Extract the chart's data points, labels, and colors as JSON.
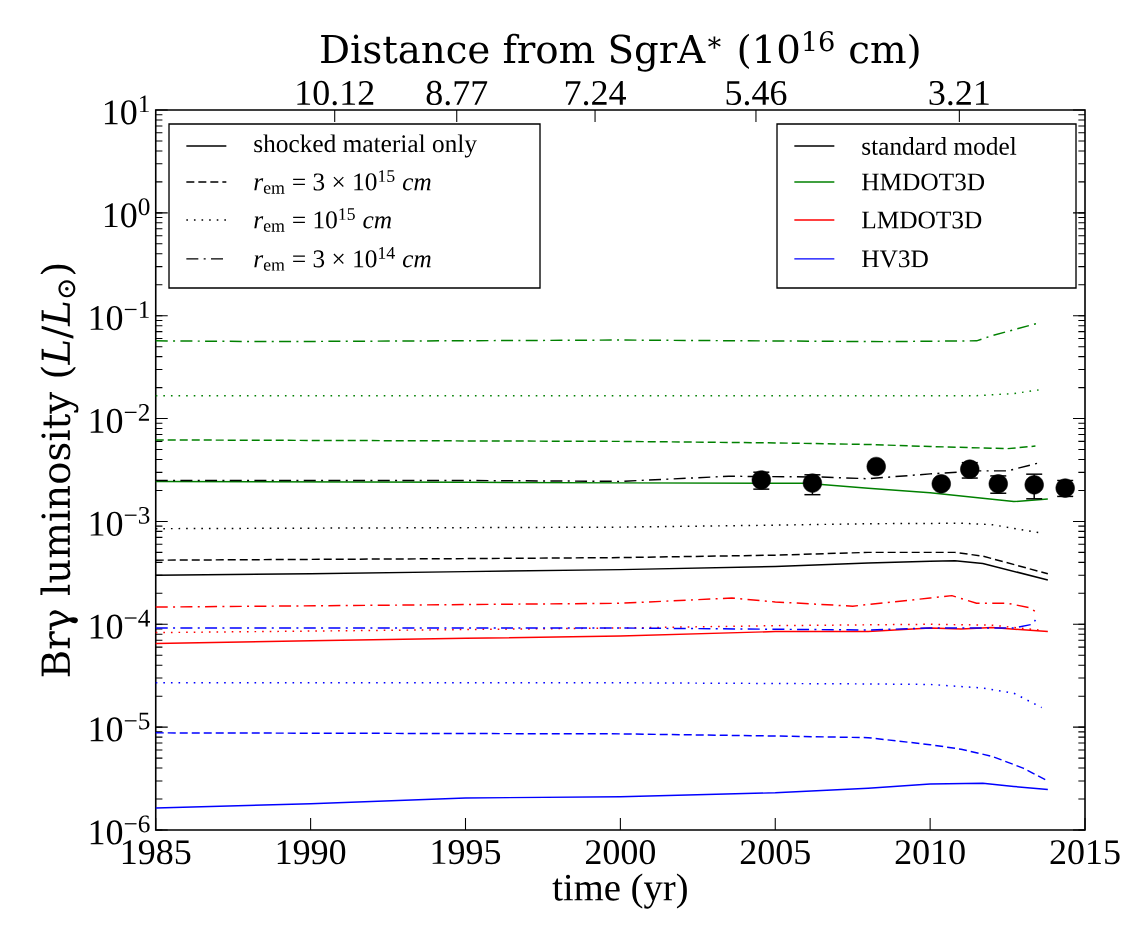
{
  "chart_data": {
    "type": "line",
    "xlabel": "time (yr)",
    "ylabel": "Brγ luminosity (*L*/*L*$_{⊙}$)",
    "x2label": "Distance from SgrA$^{∗}$ (10$^{16}$ cm)",
    "xlim": [
      1985,
      2015
    ],
    "xticks": [
      1985,
      1990,
      1995,
      2000,
      2005,
      2010,
      2015
    ],
    "x2lim": [
      12.1,
      1.82
    ],
    "x2ticks": [
      10.12,
      8.77,
      7.24,
      5.46,
      3.21
    ],
    "ylim": [
      1e-06,
      10
    ],
    "log": "y",
    "yticks": [
      {
        "value": 1e-06,
        "label": "10$^{−6}$"
      },
      {
        "value": 1e-05,
        "label": "10$^{−5}$"
      },
      {
        "value": 0.0001,
        "label": "10$^{−4}$"
      },
      {
        "value": 0.001,
        "label": "10$^{−3}$"
      },
      {
        "value": 0.01,
        "label": "10$^{−2}$"
      },
      {
        "value": 0.1,
        "label": "10$^{−1}$"
      },
      {
        "value": 1,
        "label": "10$^{0}$"
      },
      {
        "value": 10,
        "label": "10$^{1}$"
      }
    ],
    "legend": "top right",
    "annotations": [
      "shocked material only"
    ],
    "series": [
      {
        "name": "standard model",
        "color": "#000000",
        "line_style": "solid",
        "x": [
          1985,
          1990,
          1995,
          2000,
          2005,
          2008,
          2010,
          2010.8,
          2011.7,
          2013.8
        ],
        "values": [
          0.0003,
          0.00031,
          0.000325,
          0.00034,
          0.000365,
          0.000395,
          0.00041,
          0.000415,
          0.00039,
          0.00027
        ]
      },
      {
        "name": "HMDOT3D",
        "color": "#008000",
        "line_style": "solid",
        "x": [
          1985,
          1995,
          2000,
          2006,
          2008,
          2010,
          2012.7,
          2013.8
        ],
        "values": [
          0.00245,
          0.0024,
          0.00237,
          0.00235,
          0.0021,
          0.0019,
          0.00156,
          0.00165
        ]
      },
      {
        "name": "LMDOT3D",
        "color": "#ff0000",
        "line_style": "solid",
        "x": [
          1985,
          1990,
          1995,
          2000,
          2005,
          2008,
          2010,
          2011,
          2012,
          2013.8
        ],
        "values": [
          6.5e-05,
          6.9e-05,
          7.3e-05,
          7.7e-05,
          8.5e-05,
          8.5e-05,
          9.2e-05,
          9e-05,
          9.3e-05,
          8.5e-05
        ]
      },
      {
        "name": "HV3D",
        "color": "#0000ff",
        "line_style": "solid",
        "x": [
          1985,
          1990,
          1995,
          2000,
          2005,
          2008,
          2010,
          2011.7,
          2012.7,
          2013.8
        ],
        "values": [
          1.64e-06,
          1.8e-06,
          2.05e-06,
          2.1e-06,
          2.3e-06,
          2.55e-06,
          2.8e-06,
          2.85e-06,
          2.65e-06,
          2.47e-06
        ]
      },
      {
        "name": "*r*$_{em}$ = 3 × 10$^{15}$ *cm*",
        "color": "#000000",
        "line_style": "dashed",
        "x": [
          1985,
          1995,
          2000,
          2005,
          2008,
          2010.8,
          2011.7,
          2013.8
        ],
        "values": [
          0.00042,
          0.000435,
          0.000445,
          0.00047,
          0.0005,
          0.0005,
          0.00046,
          0.00031
        ]
      },
      {
        "name": "*r*$_{em}$ = 10$^{15}$ *cm*",
        "color": "#000000",
        "line_style": "dotted",
        "x": [
          1985,
          2000,
          2005,
          2008,
          2011,
          2012,
          2013.5
        ],
        "values": [
          0.00085,
          0.00088,
          0.00092,
          0.00095,
          0.00096,
          0.00093,
          0.00078
        ]
      },
      {
        "name": "*r*$_{em}$ = 3 × 10$^{14}$ *cm*",
        "color": "#000000",
        "line_style": "dashdot",
        "x": [
          1985,
          1995,
          2000,
          2003.5,
          2006.5,
          2008,
          2010,
          2011.5,
          2012.5,
          2013.5
        ],
        "values": [
          0.0025,
          0.0025,
          0.00245,
          0.00275,
          0.0027,
          0.0026,
          0.0029,
          0.0031,
          0.0031,
          0.0037
        ]
      },
      {
        "color": "#008000",
        "line_style": "dashed",
        "x": [
          1985,
          2000,
          2005,
          2008,
          2010,
          2012.5,
          2013.4
        ],
        "values": [
          0.0062,
          0.006,
          0.0058,
          0.0056,
          0.00535,
          0.0051,
          0.0054
        ]
      },
      {
        "color": "#008000",
        "line_style": "dotted",
        "x": [
          1985,
          2000,
          2011.5,
          2012.7,
          2013.5
        ],
        "values": [
          0.0167,
          0.0167,
          0.0167,
          0.0175,
          0.019
        ]
      },
      {
        "color": "#008000",
        "line_style": "dashdot",
        "x": [
          1985,
          1988.7,
          2000,
          2008.5,
          2011.5,
          2012,
          2013.5
        ],
        "values": [
          0.057,
          0.056,
          0.058,
          0.056,
          0.057,
          0.064,
          0.085
        ]
      },
      {
        "color": "#ff0000",
        "line_style": "dotted",
        "x": [
          1985,
          2000,
          2005,
          2010,
          2012,
          2013.5
        ],
        "values": [
          8.3e-05,
          9.2e-05,
          9.7e-05,
          0.0001,
          9.8e-05,
          8.8e-05
        ]
      },
      {
        "color": "#ff0000",
        "line_style": "dashdot",
        "x": [
          1985,
          2000,
          2003.6,
          2005,
          2007.5,
          2010,
          2010.7,
          2011.5,
          2012.5,
          2013.2,
          2013.4
        ],
        "values": [
          0.000147,
          0.00016,
          0.00018,
          0.000165,
          0.00015,
          0.00018,
          0.00019,
          0.00016,
          0.00016,
          0.000145,
          0.000133
        ]
      },
      {
        "color": "#0000ff",
        "line_style": "dashed",
        "x": [
          1985,
          2000,
          2005,
          2008,
          2010,
          2011,
          2012,
          2013,
          2013.8
        ],
        "values": [
          8.8e-06,
          8.6e-06,
          8.2e-06,
          7.9e-06,
          6.75e-06,
          6.1e-06,
          5.2e-06,
          4e-06,
          3e-06
        ]
      },
      {
        "color": "#0000ff",
        "line_style": "dotted",
        "x": [
          1985,
          2000,
          2008,
          2010,
          2011.7,
          2012.7,
          2013.6
        ],
        "values": [
          2.7e-05,
          2.7e-05,
          2.63e-05,
          2.6e-05,
          2.4e-05,
          2.14e-05,
          1.55e-05
        ]
      },
      {
        "color": "#0000ff",
        "line_style": "dashdot",
        "x": [
          1985,
          2000,
          2008,
          2010,
          2012.7,
          2013.3,
          2013.4
        ],
        "values": [
          9.2e-05,
          9.2e-05,
          8.8e-05,
          9.2e-05,
          9.2e-05,
          0.0001,
          0.00011
        ]
      },
      {
        "type": "scatter",
        "marker": "circle",
        "color": "#000000",
        "x": [
          2004.55,
          2006.2,
          2008.26,
          2010.36,
          2011.28,
          2012.2,
          2013.36,
          2014.36
        ],
        "values": [
          0.00253,
          0.00236,
          0.00342,
          0.00232,
          0.00322,
          0.00232,
          0.00227,
          0.00211
        ],
        "errors": [
          [
            0.00206,
            0.00301
          ],
          [
            0.00182,
            0.00284
          ],
          null,
          null,
          [
            0.00264,
            0.00373
          ],
          [
            0.00188,
            0.00277
          ],
          [
            0.00166,
            0.00288
          ],
          [
            0.00175,
            0.0025
          ]
        ]
      }
    ]
  }
}
